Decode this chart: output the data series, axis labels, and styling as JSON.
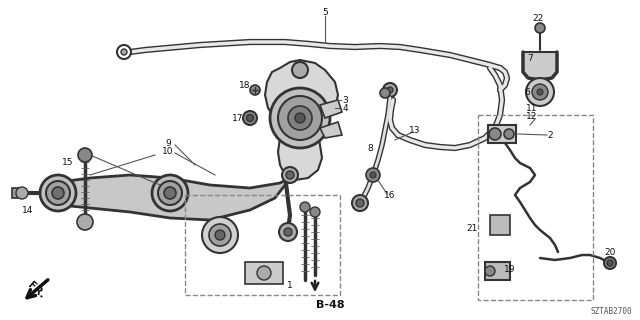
{
  "diagram_code": "SZTAB2700",
  "background_color": "#ffffff",
  "lc": "#333333",
  "fig_width": 6.4,
  "fig_height": 3.2,
  "dpi": 100
}
